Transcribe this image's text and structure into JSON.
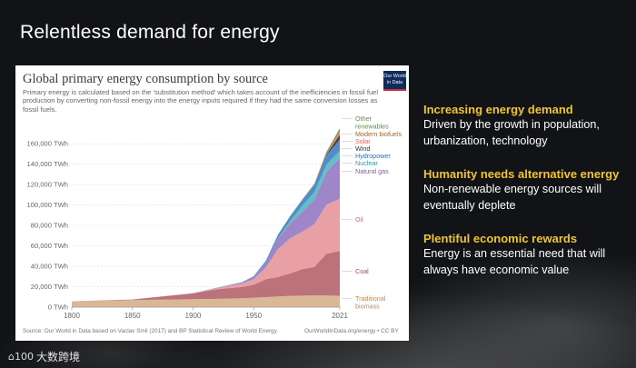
{
  "slide": {
    "title": "Relentless demand for energy",
    "brand_text": "大数跨境",
    "brand_mark": "⌂100"
  },
  "chart_panel": {
    "title": "Global primary energy consumption by source",
    "subtitle": "Primary energy is calculated based on the 'substitution method' which takes account of the inefficiencies in fossil fuel production by converting non-fossil energy into the energy inputs required if they had the same conversion losses as fossil fuels.",
    "logo_line1": "Our World",
    "logo_line2": "in Data",
    "source": "Source: Our World in Data based on Vaclav Smil (2017) and BP Statistical Review of World Energy",
    "license": "OurWorldInData.org/energy • CC BY"
  },
  "bullets": [
    {
      "heading": "Increasing energy demand",
      "body": "Driven by the growth in population, urbanization, technology"
    },
    {
      "heading": "Humanity needs alternative energy",
      "body": "Non-renewable energy sources will eventually deplete"
    },
    {
      "heading": "Plentiful economic rewards",
      "body": "Energy is an essential need that will always have economic value"
    }
  ],
  "chart_data": {
    "type": "area",
    "title": "Global primary energy consumption by source",
    "ylabel": "",
    "xlabel": "",
    "ylim": [
      0,
      170000
    ],
    "xlim": [
      1800,
      2021
    ],
    "y_ticks": [
      "0 TWh",
      "20,000 TWh",
      "40,000 TWh",
      "60,000 TWh",
      "80,000 TWh",
      "100,000 TWh",
      "120,000 TWh",
      "140,000 TWh",
      "160,000 TWh"
    ],
    "x_ticks": [
      "1800",
      "1850",
      "1900",
      "1950",
      "2021"
    ],
    "grid": true,
    "legend": "right-inline",
    "x": [
      1800,
      1850,
      1900,
      1920,
      1940,
      1950,
      1960,
      1970,
      1980,
      1990,
      2000,
      2010,
      2021
    ],
    "series": [
      {
        "name": "Traditional biomass",
        "color": "#d7b58f",
        "values": [
          5600,
          6900,
          7700,
          8100,
          8700,
          9300,
          9800,
          10500,
          11000,
          11200,
          11300,
          11300,
          11100
        ]
      },
      {
        "name": "Coal",
        "color": "#b76a72",
        "values": [
          100,
          600,
          5700,
          9400,
          11000,
          12600,
          17500,
          19000,
          22000,
          26000,
          28000,
          41000,
          44000
        ]
      },
      {
        "name": "Oil",
        "color": "#e89ba0",
        "values": [
          0,
          0,
          200,
          1200,
          3200,
          5400,
          11700,
          27300,
          34400,
          36700,
          42000,
          48000,
          51000
        ]
      },
      {
        "name": "Natural gas",
        "color": "#9a7fc6",
        "values": [
          0,
          0,
          60,
          230,
          900,
          2100,
          4600,
          10400,
          14800,
          19500,
          24000,
          32000,
          40000
        ]
      },
      {
        "name": "Nuclear",
        "color": "#5bbcc0",
        "values": [
          0,
          0,
          0,
          0,
          0,
          0,
          0,
          250,
          2000,
          5800,
          7300,
          7400,
          7000
        ]
      },
      {
        "name": "Hydropower",
        "color": "#4a86c8",
        "values": [
          0,
          0,
          20,
          200,
          500,
          900,
          1800,
          3300,
          4800,
          5600,
          7200,
          9100,
          11000
        ]
      },
      {
        "name": "Wind",
        "color": "#3d3d3d",
        "values": [
          0,
          0,
          0,
          0,
          0,
          0,
          0,
          0,
          0,
          10,
          90,
          900,
          4800
        ]
      },
      {
        "name": "Solar",
        "color": "#e47d6d",
        "values": [
          0,
          0,
          0,
          0,
          0,
          0,
          0,
          0,
          0,
          0,
          5,
          85,
          2800
        ]
      },
      {
        "name": "Modern biofuels",
        "color": "#b0832f",
        "values": [
          0,
          0,
          0,
          0,
          0,
          0,
          0,
          0,
          60,
          200,
          300,
          1200,
          1800
        ]
      },
      {
        "name": "Other renewables",
        "color": "#5f8f4a",
        "values": [
          0,
          0,
          0,
          0,
          0,
          0,
          0,
          60,
          200,
          400,
          600,
          1100,
          1700
        ]
      }
    ],
    "legend_labels": [
      {
        "text": "Other renewables",
        "color": "#5f8f4a"
      },
      {
        "text": "Modern biofuels",
        "color": "#9a6b20"
      },
      {
        "text": "Solar",
        "color": "#e0665a"
      },
      {
        "text": "Wind",
        "color": "#333333"
      },
      {
        "text": "Hydropower",
        "color": "#2f6fb3"
      },
      {
        "text": "Nuclear",
        "color": "#2c9aa0"
      },
      {
        "text": "Natural gas",
        "color": "#7b5cb3"
      },
      {
        "text": "Oil",
        "color": "#d9616b"
      },
      {
        "text": "Coal",
        "color": "#a04c57"
      },
      {
        "text": "Traditional biomass",
        "color": "#c08a55"
      }
    ]
  }
}
